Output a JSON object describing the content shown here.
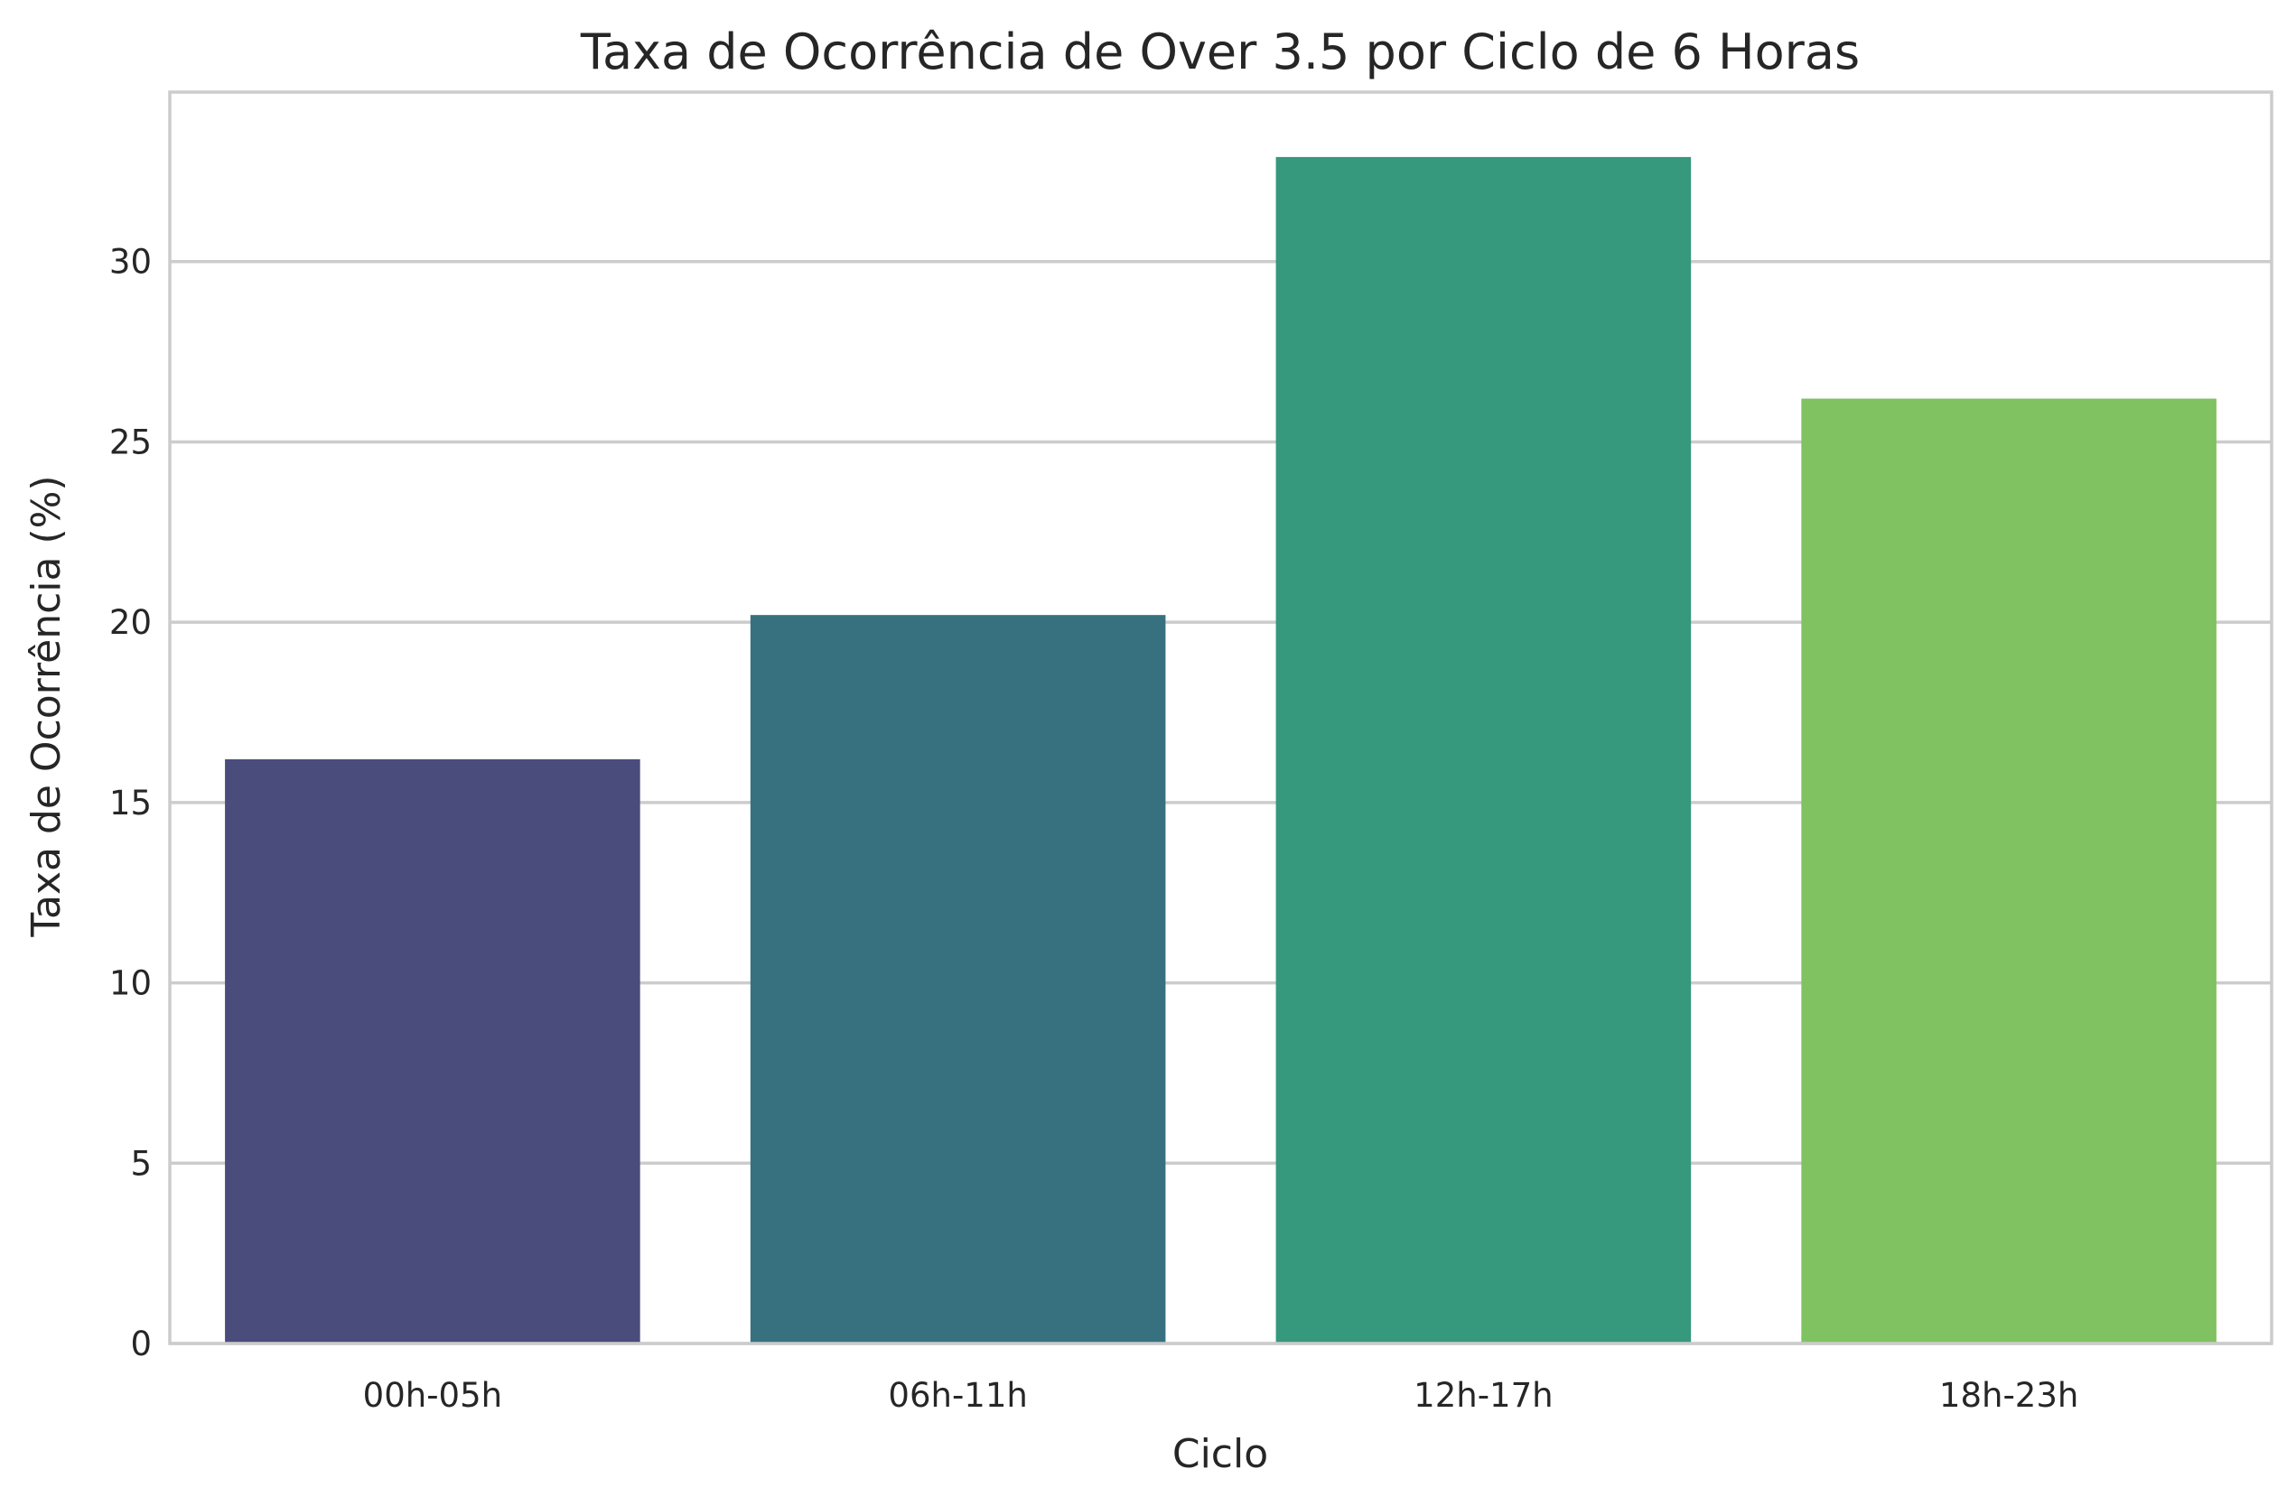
{
  "chart_data": {
    "type": "bar",
    "title": "Taxa de Ocorrência de Over 3.5 por Ciclo de 6 Horas",
    "xlabel": "Ciclo",
    "ylabel": "Taxa de Ocorrência (%)",
    "categories": [
      "00h-05h",
      "06h-11h",
      "12h-17h",
      "18h-23h"
    ],
    "values": [
      16.2,
      20.2,
      32.9,
      26.2
    ],
    "colors": [
      "#4a4c7c",
      "#377180",
      "#36987c",
      "#80c261"
    ],
    "ylim": [
      0,
      34.7
    ],
    "yticks": [
      0,
      5,
      10,
      15,
      20,
      25,
      30
    ],
    "ytick_labels": [
      "0",
      "5",
      "10",
      "15",
      "20",
      "25",
      "30"
    ],
    "grid": "horizontal",
    "legend": "none"
  }
}
